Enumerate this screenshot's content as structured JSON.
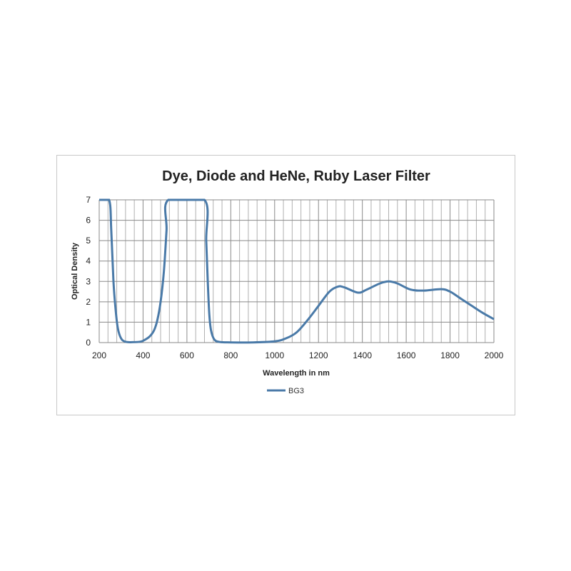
{
  "chart_data": {
    "type": "line",
    "title": "Dye, Diode and HeNe, Ruby Laser Filter",
    "xlabel": "Wavelength in nm",
    "ylabel": "Optical Density",
    "xlim": [
      200,
      2000
    ],
    "ylim": [
      0,
      7
    ],
    "xticks": [
      200,
      400,
      600,
      800,
      1000,
      1200,
      1400,
      1600,
      1800,
      2000
    ],
    "yticks": [
      0,
      1,
      2,
      3,
      4,
      5,
      6,
      7
    ],
    "grid": true,
    "legend": "bottom",
    "series": [
      {
        "name": "BG3",
        "color": "#4a7aa8",
        "x": [
          200,
          245,
          255,
          265,
          275,
          285,
          300,
          320,
          350,
          390,
          410,
          430,
          450,
          465,
          480,
          495,
          507,
          515,
          680,
          688,
          695,
          702,
          710,
          725,
          750,
          800,
          900,
          1000,
          1050,
          1100,
          1150,
          1200,
          1250,
          1290,
          1320,
          1380,
          1420,
          1480,
          1520,
          1560,
          1620,
          1680,
          1760,
          1800,
          1850,
          1900,
          1950,
          2000
        ],
        "y": [
          7,
          7,
          5.5,
          3.0,
          1.6,
          0.7,
          0.2,
          0.04,
          0.02,
          0.05,
          0.15,
          0.3,
          0.6,
          1.1,
          2.0,
          3.5,
          5.5,
          7,
          7,
          5.0,
          3.0,
          1.4,
          0.6,
          0.15,
          0.03,
          0.01,
          0.01,
          0.06,
          0.2,
          0.5,
          1.1,
          1.8,
          2.5,
          2.75,
          2.7,
          2.45,
          2.6,
          2.9,
          3.0,
          2.9,
          2.6,
          2.55,
          2.62,
          2.5,
          2.15,
          1.8,
          1.45,
          1.15
        ]
      }
    ]
  }
}
